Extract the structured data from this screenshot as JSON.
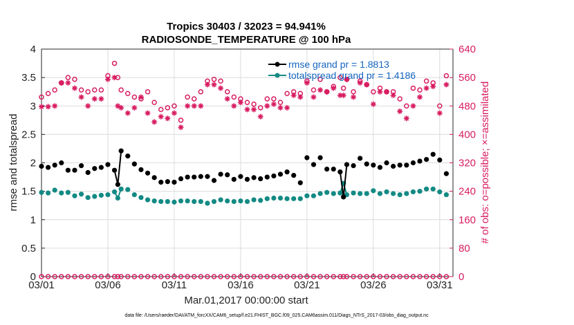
{
  "chart_data": {
    "type": "line",
    "title": "Tropics 30403 / 32023 = 94.941%",
    "subtitle": "RADIOSONDE_TEMPERATURE @ 100 hPa",
    "xlabel": "Mar.01,2017 00:00:00 start",
    "ylabel": "rmse and totalspread",
    "ylabel_right": "# of obs: o=possible; ×=assimilated",
    "footnote": "data file: /Users/raeder/DAI/ATM_forcXX/CAM6_setup/f.e21.FHIST_BGC.f09_025.CAM6assim.011/Diags_NTrS_2017-03/obs_diag_output.nc",
    "xlim": [
      1,
      32
    ],
    "ylim": [
      0,
      4
    ],
    "ylim_right": [
      0,
      640
    ],
    "x_ticks": [
      1,
      6,
      11,
      16,
      21,
      26,
      31
    ],
    "x_tick_labels": [
      "03/01",
      "03/06",
      "03/11",
      "03/16",
      "03/21",
      "03/26",
      "03/31"
    ],
    "y_ticks": [
      "0",
      "0.5",
      "1",
      "1.5",
      "2",
      "2.5",
      "3",
      "3.5",
      "4"
    ],
    "y_ticks_right": [
      "0",
      "80",
      "160",
      "240",
      "320",
      "400",
      "480",
      "560",
      "640"
    ],
    "grid": true,
    "legend": [
      {
        "label": "rmse grand pr = 1.8813",
        "color": "#000000"
      },
      {
        "label": "totalspread grand pr = 1.4186",
        "color": "#138a84"
      }
    ],
    "x": [
      1.0,
      1.5,
      2.0,
      2.5,
      3.0,
      3.5,
      4.0,
      4.5,
      5.0,
      5.5,
      6.0,
      6.5,
      6.75,
      7.0,
      7.5,
      8.0,
      8.5,
      9.0,
      9.5,
      10.0,
      10.5,
      11.0,
      11.5,
      12.0,
      12.5,
      13.0,
      13.5,
      14.0,
      14.5,
      15.0,
      15.5,
      16.0,
      16.5,
      17.0,
      17.5,
      18.0,
      18.5,
      19.0,
      19.5,
      20.0,
      20.5,
      21.0,
      21.5,
      22.0,
      22.5,
      23.0,
      23.5,
      23.75,
      24.0,
      24.5,
      25.0,
      25.5,
      26.0,
      26.5,
      27.0,
      27.5,
      28.0,
      28.5,
      29.0,
      29.5,
      30.0,
      30.5,
      31.0,
      31.5
    ],
    "series": [
      {
        "name": "rmse",
        "color": "#000000",
        "values": [
          1.94,
          1.92,
          1.96,
          2.0,
          1.87,
          1.87,
          1.95,
          1.83,
          1.9,
          1.92,
          1.97,
          1.87,
          1.62,
          2.21,
          2.12,
          1.98,
          1.88,
          1.82,
          1.74,
          1.66,
          1.67,
          1.66,
          1.72,
          1.75,
          1.75,
          1.76,
          1.76,
          1.69,
          1.8,
          1.79,
          1.71,
          1.76,
          1.71,
          1.74,
          1.72,
          1.75,
          1.77,
          1.8,
          1.84,
          1.78,
          1.65,
          2.09,
          1.97,
          2.09,
          1.89,
          1.89,
          1.84,
          1.4,
          1.97,
          1.95,
          2.08,
          1.98,
          1.96,
          1.92,
          2.0,
          1.94,
          1.96,
          1.96,
          2.0,
          2.03,
          2.06,
          2.15,
          2.05,
          1.81
        ]
      },
      {
        "name": "totalspread",
        "color": "#138a84",
        "values": [
          1.48,
          1.47,
          1.52,
          1.47,
          1.48,
          1.42,
          1.45,
          1.39,
          1.41,
          1.43,
          1.44,
          1.49,
          1.38,
          1.54,
          1.53,
          1.44,
          1.39,
          1.35,
          1.33,
          1.32,
          1.32,
          1.31,
          1.33,
          1.33,
          1.32,
          1.32,
          1.29,
          1.32,
          1.35,
          1.33,
          1.32,
          1.33,
          1.32,
          1.35,
          1.34,
          1.37,
          1.38,
          1.38,
          1.37,
          1.37,
          1.37,
          1.42,
          1.42,
          1.46,
          1.48,
          1.46,
          1.47,
          1.64,
          1.44,
          1.47,
          1.46,
          1.46,
          1.51,
          1.46,
          1.49,
          1.46,
          1.44,
          1.46,
          1.49,
          1.5,
          1.54,
          1.54,
          1.49,
          1.44
        ]
      },
      {
        "name": "possible",
        "color": "#d81b60",
        "axis": "right",
        "values": [
          505,
          515,
          525,
          545,
          560,
          555,
          525,
          520,
          525,
          525,
          565,
          600,
          560,
          525,
          515,
          505,
          500,
          520,
          490,
          470,
          475,
          480,
          440,
          505,
          500,
          520,
          550,
          555,
          550,
          520,
          505,
          500,
          490,
          485,
          475,
          500,
          500,
          490,
          515,
          520,
          515,
          550,
          525,
          555,
          520,
          535,
          560,
          530,
          555,
          520,
          550,
          540,
          520,
          530,
          520,
          520,
          500,
          480,
          530,
          525,
          550,
          545,
          480,
          565
        ]
      },
      {
        "name": "assimilated",
        "color": "#d81b60",
        "axis": "right",
        "values": [
          478,
          478,
          480,
          545,
          545,
          530,
          505,
          480,
          500,
          500,
          555,
          560,
          480,
          475,
          460,
          475,
          505,
          460,
          435,
          450,
          445,
          460,
          420,
          480,
          480,
          480,
          540,
          540,
          530,
          500,
          480,
          490,
          470,
          470,
          450,
          480,
          485,
          475,
          475,
          510,
          505,
          545,
          505,
          525,
          520,
          530,
          510,
          510,
          555,
          505,
          545,
          540,
          485,
          520,
          520,
          510,
          465,
          445,
          480,
          505,
          530,
          535,
          460,
          540
        ]
      },
      {
        "name": "possible-zero",
        "color": "#d81b60",
        "axis": "right",
        "values": [
          0,
          0,
          0,
          0,
          0,
          0,
          0,
          0,
          0,
          0,
          0,
          0,
          0,
          0,
          0,
          0,
          0,
          0,
          0,
          0,
          0,
          0,
          0,
          0,
          0,
          0,
          0,
          0,
          0,
          0,
          0,
          0,
          0,
          0,
          0,
          0,
          0,
          0,
          0,
          0,
          0,
          0,
          0,
          0,
          0,
          0,
          0,
          0,
          0,
          0,
          0,
          0,
          0,
          0,
          0,
          0,
          0,
          0,
          0,
          0,
          0,
          0,
          0,
          0
        ]
      }
    ]
  }
}
